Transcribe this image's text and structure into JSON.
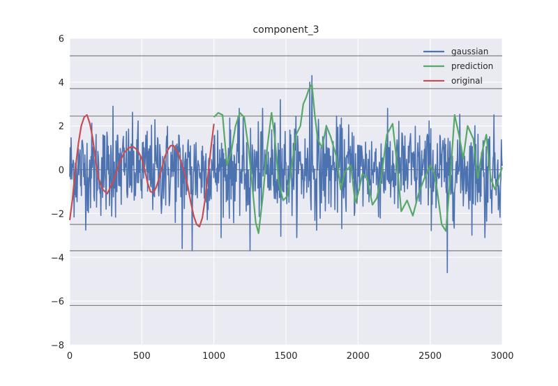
{
  "chart_data": {
    "type": "line",
    "title": "component_3",
    "xlabel": "",
    "ylabel": "",
    "xlim": [
      0,
      3000
    ],
    "ylim": [
      -8,
      6
    ],
    "xticks": [
      0,
      500,
      1000,
      1500,
      2000,
      2500,
      3000
    ],
    "yticks": [
      -8,
      -6,
      -4,
      -2,
      0,
      2,
      4,
      6
    ],
    "grid": true,
    "legend_position": "top-right",
    "horizontal_reference_lines": [
      5.2,
      3.7,
      2.45,
      0,
      -2.5,
      -3.7,
      -6.2
    ],
    "series": [
      {
        "name": "gaussian",
        "color": "#4c72b0",
        "style": "noisy",
        "x_range": [
          0,
          3000
        ],
        "typical_range": [
          -2.5,
          2.0
        ],
        "spikes": [
          [
            1680,
            4.3
          ],
          [
            1665,
            4.0
          ],
          [
            2620,
            -4.7
          ],
          [
            1250,
            -3.7
          ],
          [
            780,
            -3.6
          ],
          [
            850,
            -3.7
          ],
          [
            2880,
            -3.1
          ],
          [
            300,
            2.9
          ],
          [
            1460,
            3.2
          ]
        ]
      },
      {
        "name": "prediction",
        "color": "#55a868",
        "x": [
          1000,
          1030,
          1060,
          1090,
          1120,
          1150,
          1180,
          1210,
          1240,
          1270,
          1290,
          1310,
          1340,
          1370,
          1400,
          1420,
          1450,
          1480,
          1510,
          1540,
          1570,
          1600,
          1620,
          1640,
          1660,
          1680,
          1700,
          1720,
          1750,
          1780,
          1810,
          1850,
          1880,
          1910,
          1950,
          1980,
          2000,
          2030,
          2060,
          2100,
          2130,
          2160,
          2200,
          2240,
          2270,
          2300,
          2340,
          2380,
          2420,
          2460,
          2500,
          2530,
          2550,
          2580,
          2610,
          2640,
          2670,
          2700,
          2730,
          2760,
          2800,
          2830,
          2860,
          2890,
          2920,
          2950,
          3000
        ],
        "y": [
          2.4,
          2.6,
          2.5,
          0.2,
          0.8,
          2.0,
          2.6,
          2.4,
          1.0,
          -1.0,
          -2.4,
          -2.9,
          -1.2,
          1.0,
          2.6,
          1.6,
          -0.6,
          -1.4,
          -1.2,
          0.2,
          1.6,
          2.0,
          3.0,
          3.3,
          3.7,
          3.9,
          2.5,
          1.4,
          1.0,
          2.0,
          1.5,
          0.6,
          -0.9,
          -0.1,
          0.2,
          -1.5,
          -1.1,
          -0.2,
          -0.3,
          -1.6,
          -1.3,
          -0.4,
          1.6,
          2.1,
          0.3,
          -1.9,
          -1.4,
          -2.1,
          -1.1,
          -0.4,
          0.2,
          -0.2,
          -1.0,
          -2.5,
          -2.8,
          -0.3,
          2.5,
          1.6,
          0.5,
          2.0,
          1.4,
          -0.4,
          0.8,
          1.6,
          -0.4,
          -0.9,
          0.1
        ]
      },
      {
        "name": "original",
        "color": "#c44e52",
        "x": [
          0,
          20,
          40,
          60,
          80,
          100,
          120,
          140,
          160,
          180,
          200,
          230,
          260,
          290,
          320,
          350,
          380,
          410,
          440,
          470,
          500,
          520,
          540,
          560,
          580,
          600,
          620,
          640,
          660,
          680,
          700,
          720,
          740,
          760,
          780,
          800,
          820,
          840,
          860,
          880,
          900,
          920,
          940,
          960,
          980,
          1000
        ],
        "y": [
          -2.3,
          -1.3,
          0.1,
          1.2,
          2.0,
          2.4,
          2.5,
          2.1,
          1.4,
          0.4,
          -0.4,
          -0.9,
          -1.1,
          -0.7,
          -0.2,
          0.4,
          0.8,
          1.0,
          1.05,
          0.9,
          0.5,
          0.0,
          -0.6,
          -1.0,
          -1.05,
          -0.8,
          -0.4,
          0.1,
          0.6,
          0.9,
          1.1,
          1.1,
          0.9,
          0.6,
          0.2,
          -0.2,
          -0.8,
          -1.5,
          -2.1,
          -2.5,
          -2.6,
          -2.2,
          -1.3,
          -0.2,
          1.0,
          2.1
        ]
      }
    ]
  }
}
